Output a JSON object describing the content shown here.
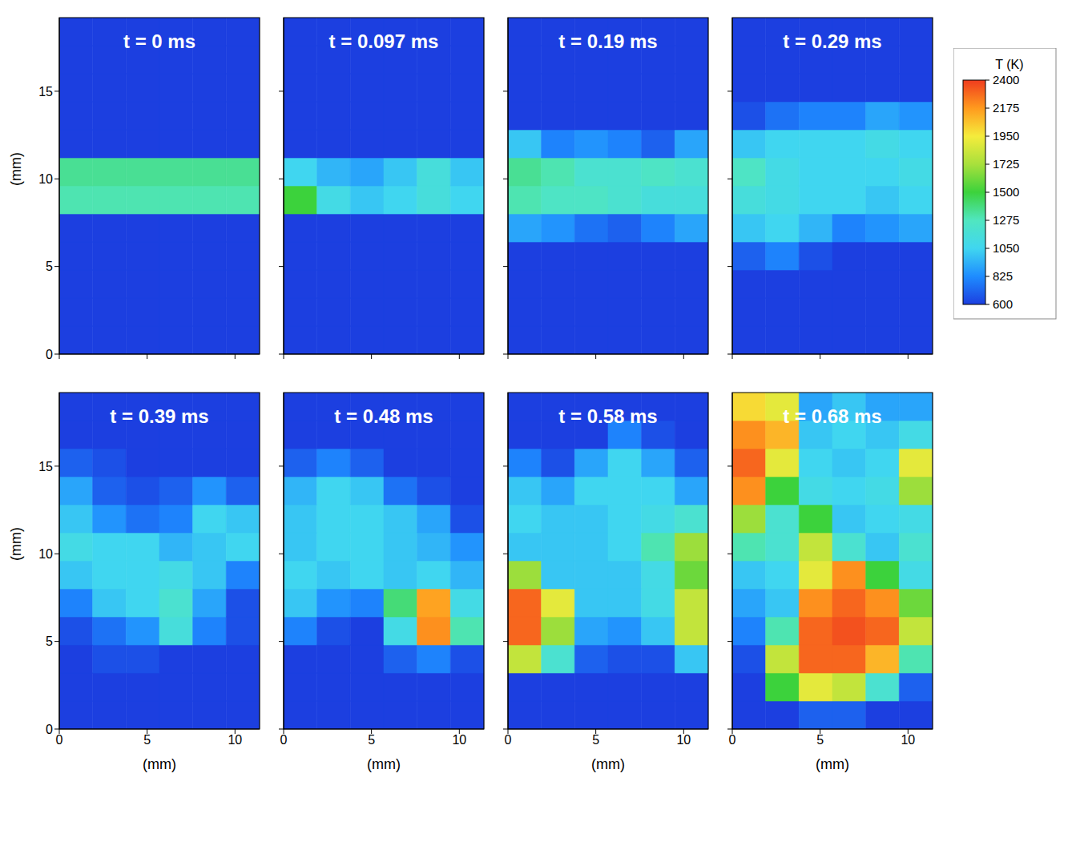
{
  "chart_data": {
    "type": "heatmap",
    "x_label": "(mm)",
    "y_label": "(mm)",
    "xlim": [
      0,
      11.4
    ],
    "ylim": [
      0,
      19.2
    ],
    "xticks": [
      0,
      5,
      10
    ],
    "yticks": [
      0,
      5,
      10,
      15
    ],
    "x_edges": [
      0,
      1.9,
      3.8,
      5.7,
      7.6,
      9.5,
      11.4
    ],
    "y_edges": [
      0,
      1.6,
      3.2,
      4.8,
      6.4,
      8.0,
      9.6,
      11.2,
      12.8,
      14.4,
      16.0,
      17.6,
      19.2
    ],
    "colorbar": {
      "title": "T (K)",
      "range": [
        600,
        2400
      ],
      "ticks": [
        600,
        825,
        1050,
        1275,
        1500,
        1725,
        1950,
        2175,
        2400
      ]
    },
    "panels": [
      {
        "title": "t = 0 ms",
        "tick_labels": "y",
        "values": [
          [
            600,
            600,
            600,
            600,
            600,
            600
          ],
          [
            600,
            600,
            600,
            600,
            600,
            600
          ],
          [
            600,
            600,
            600,
            600,
            600,
            600
          ],
          [
            600,
            600,
            600,
            600,
            600,
            600
          ],
          [
            600,
            600,
            600,
            600,
            600,
            600
          ],
          [
            1300,
            1300,
            1300,
            1300,
            1300,
            1300
          ],
          [
            1350,
            1350,
            1350,
            1350,
            1350,
            1350
          ],
          [
            600,
            600,
            600,
            600,
            600,
            600
          ],
          [
            600,
            600,
            600,
            600,
            600,
            600
          ],
          [
            600,
            600,
            600,
            600,
            600,
            600
          ],
          [
            600,
            600,
            600,
            600,
            600,
            600
          ],
          [
            600,
            600,
            600,
            600,
            600,
            600
          ]
        ]
      },
      {
        "title": "t = 0.097 ms",
        "tick_labels": false,
        "values": [
          [
            600,
            600,
            600,
            600,
            600,
            600
          ],
          [
            600,
            600,
            600,
            600,
            600,
            600
          ],
          [
            600,
            600,
            600,
            600,
            600,
            600
          ],
          [
            600,
            600,
            600,
            600,
            600,
            600
          ],
          [
            600,
            600,
            600,
            600,
            600,
            600
          ],
          [
            1500,
            1100,
            1000,
            1050,
            1150,
            1050
          ],
          [
            1050,
            950,
            900,
            1000,
            1150,
            1000
          ],
          [
            600,
            600,
            600,
            600,
            600,
            600
          ],
          [
            600,
            600,
            600,
            600,
            600,
            600
          ],
          [
            600,
            600,
            600,
            600,
            600,
            600
          ],
          [
            600,
            600,
            600,
            600,
            600,
            600
          ],
          [
            600,
            600,
            600,
            600,
            600,
            600
          ]
        ]
      },
      {
        "title": "t = 0.19 ms",
        "tick_labels": false,
        "values": [
          [
            600,
            600,
            600,
            600,
            600,
            600
          ],
          [
            600,
            600,
            600,
            600,
            600,
            600
          ],
          [
            600,
            600,
            600,
            600,
            600,
            600
          ],
          [
            600,
            600,
            600,
            600,
            600,
            600
          ],
          [
            900,
            850,
            750,
            700,
            800,
            900
          ],
          [
            1300,
            1250,
            1250,
            1200,
            1150,
            1150
          ],
          [
            1350,
            1300,
            1200,
            1200,
            1250,
            1200
          ],
          [
            1000,
            800,
            850,
            800,
            700,
            900
          ],
          [
            600,
            600,
            600,
            600,
            600,
            600
          ],
          [
            600,
            600,
            600,
            600,
            600,
            600
          ],
          [
            600,
            600,
            600,
            600,
            600,
            600
          ],
          [
            600,
            600,
            600,
            600,
            600,
            600
          ]
        ]
      },
      {
        "title": "t = 0.29 ms",
        "tick_labels": false,
        "values": [
          [
            600,
            600,
            600,
            600,
            600,
            600
          ],
          [
            600,
            600,
            600,
            600,
            600,
            600
          ],
          [
            600,
            600,
            600,
            600,
            600,
            600
          ],
          [
            700,
            800,
            650,
            600,
            600,
            600
          ],
          [
            1000,
            1050,
            950,
            800,
            850,
            900
          ],
          [
            1150,
            1100,
            1050,
            1050,
            1000,
            1050
          ],
          [
            1250,
            1100,
            1050,
            1050,
            1050,
            1100
          ],
          [
            1000,
            1050,
            1050,
            1050,
            1100,
            1050
          ],
          [
            650,
            750,
            800,
            800,
            900,
            850
          ],
          [
            600,
            600,
            600,
            600,
            600,
            600
          ],
          [
            600,
            600,
            600,
            600,
            600,
            600
          ],
          [
            600,
            600,
            600,
            600,
            600,
            600
          ]
        ]
      },
      {
        "title": "t = 0.39 ms",
        "tick_labels": true,
        "values": [
          [
            600,
            600,
            600,
            600,
            600,
            600
          ],
          [
            600,
            600,
            600,
            600,
            600,
            600
          ],
          [
            600,
            650,
            650,
            600,
            600,
            600
          ],
          [
            650,
            750,
            850,
            1150,
            800,
            650
          ],
          [
            800,
            1000,
            1050,
            1200,
            900,
            650
          ],
          [
            1000,
            1050,
            1050,
            1100,
            1000,
            800
          ],
          [
            1100,
            1050,
            1050,
            950,
            1000,
            1050
          ],
          [
            1000,
            850,
            750,
            800,
            1050,
            1000
          ],
          [
            900,
            700,
            650,
            700,
            850,
            700
          ],
          [
            700,
            650,
            600,
            600,
            600,
            600
          ],
          [
            600,
            600,
            600,
            600,
            600,
            600
          ],
          [
            600,
            600,
            600,
            600,
            600,
            600
          ]
        ]
      },
      {
        "title": "t = 0.48 ms",
        "tick_labels": "x",
        "values": [
          [
            600,
            600,
            600,
            600,
            600,
            600
          ],
          [
            600,
            600,
            600,
            600,
            600,
            600
          ],
          [
            600,
            600,
            600,
            700,
            800,
            650
          ],
          [
            800,
            650,
            600,
            1100,
            2200,
            1300
          ],
          [
            1000,
            850,
            800,
            1400,
            2150,
            1100
          ],
          [
            1050,
            1000,
            1050,
            1000,
            1050,
            950
          ],
          [
            1000,
            1050,
            1050,
            1000,
            950,
            850
          ],
          [
            1000,
            1050,
            1050,
            1000,
            900,
            650
          ],
          [
            950,
            1050,
            1000,
            750,
            650,
            600
          ],
          [
            700,
            800,
            700,
            600,
            600,
            600
          ],
          [
            600,
            600,
            600,
            600,
            600,
            600
          ],
          [
            600,
            600,
            600,
            600,
            600,
            600
          ]
        ]
      },
      {
        "title": "t = 0.58 ms",
        "tick_labels": "x",
        "values": [
          [
            600,
            600,
            600,
            600,
            600,
            600
          ],
          [
            600,
            600,
            600,
            600,
            600,
            600
          ],
          [
            1800,
            1200,
            700,
            650,
            650,
            1000
          ],
          [
            2300,
            1700,
            900,
            850,
            1000,
            1800
          ],
          [
            2300,
            1900,
            1000,
            1000,
            1100,
            1800
          ],
          [
            1700,
            1000,
            1000,
            1000,
            1100,
            1600
          ],
          [
            1000,
            1000,
            1000,
            1050,
            1300,
            1700
          ],
          [
            1050,
            1000,
            1000,
            1050,
            1100,
            1200
          ],
          [
            1000,
            900,
            1050,
            1050,
            1050,
            900
          ],
          [
            800,
            650,
            900,
            1050,
            900,
            700
          ],
          [
            600,
            600,
            600,
            800,
            650,
            600
          ],
          [
            600,
            600,
            600,
            600,
            600,
            600
          ]
        ]
      },
      {
        "title": "t = 0.68 ms",
        "tick_labels": "x",
        "values": [
          [
            600,
            600,
            700,
            700,
            600,
            600
          ],
          [
            600,
            1500,
            1900,
            1800,
            1200,
            700
          ],
          [
            650,
            1800,
            2300,
            2300,
            2100,
            1300
          ],
          [
            800,
            1300,
            2300,
            2350,
            2300,
            1800
          ],
          [
            900,
            1000,
            2200,
            2300,
            2200,
            1600
          ],
          [
            1000,
            1050,
            1900,
            2200,
            1500,
            1100
          ],
          [
            1300,
            1200,
            1800,
            1200,
            1000,
            1200
          ],
          [
            1700,
            1200,
            1500,
            1000,
            1050,
            1100
          ],
          [
            2200,
            1500,
            1100,
            1050,
            1100,
            1700
          ],
          [
            2300,
            1900,
            1050,
            1000,
            1050,
            1900
          ],
          [
            2200,
            2100,
            1000,
            1050,
            1000,
            1100
          ],
          [
            2000,
            1900,
            900,
            1000,
            900,
            900
          ]
        ]
      }
    ]
  }
}
